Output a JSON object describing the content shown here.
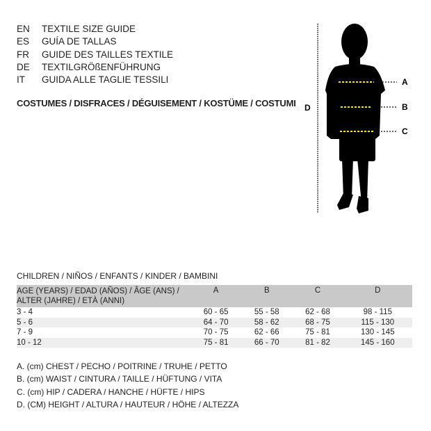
{
  "languages": [
    {
      "code": "EN",
      "text": "TEXTILE SIZE GUIDE"
    },
    {
      "code": "ES",
      "text": "GUÍA DE TALLAS"
    },
    {
      "code": "FR",
      "text": "GUIDE DES TAILLES TEXTILE"
    },
    {
      "code": "DE",
      "text": "TEXTILGRÖßENFÜHRUNG"
    },
    {
      "code": "IT",
      "text": "GUIDA ALLE TAGLIE TESSILI"
    }
  ],
  "costumes": "COSTUMES / DISFRACES / DÉGUISEMENT / KOSTÜME / COSTUMI",
  "figure": {
    "labels": {
      "a": "A",
      "b": "B",
      "c": "C",
      "d": "D"
    },
    "measure_line_color": "#f5e600"
  },
  "children": "CHILDREN / NIÑOS / ENFANTS / KINDER / BAMBINI",
  "table": {
    "headers": [
      "AGE (YEARS) / EDAD (AÑOS) / ÂGE (ANS) / ALTER (JAHRE) / ETÀ (ANNI)",
      "A",
      "B",
      "C",
      "D"
    ],
    "rows": [
      [
        "3 - 4",
        "60 - 65",
        "55 - 58",
        "62 - 68",
        "98 - 115"
      ],
      [
        "5 - 6",
        "64 - 70",
        "58 - 62",
        "68 - 75",
        "115 - 130"
      ],
      [
        "7 - 9",
        "70 - 75",
        "62 - 66",
        "75 - 81",
        "130 - 145"
      ],
      [
        "10 - 12",
        "75 - 81",
        "66 - 70",
        "81 - 82",
        "145 - 160"
      ]
    ]
  },
  "legend": [
    "A. (cm) CHEST / PECHO / POITRINE / TRUHE / PETTO",
    "B. (cm) WAIST / CINTURA / TAILLE / HÜFTUNG / VITA",
    "C. (cm) HIP / CADERA / HANCHE / HÜFTE / HIPS",
    "D. (CM) HEIGHT / ALTURA / HAUTEUR / HÖHE / ALTEZZA"
  ]
}
